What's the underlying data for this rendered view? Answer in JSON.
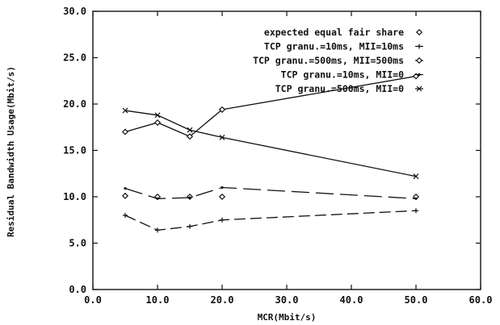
{
  "chart_data": {
    "type": "line",
    "xlabel": "MCR(Mbit/s)",
    "ylabel": "Residual Bandwidth Usage(Mbit/s)",
    "xlim": [
      0,
      60
    ],
    "ylim": [
      0,
      30
    ],
    "x_ticks": [
      "0.0",
      "10.0",
      "20.0",
      "30.0",
      "40.0",
      "50.0",
      "60.0"
    ],
    "y_ticks": [
      "0.0",
      "5.0",
      "10.0",
      "15.0",
      "20.0",
      "25.0",
      "30.0"
    ],
    "x_tick_values": [
      0,
      10,
      20,
      30,
      40,
      50,
      60
    ],
    "y_tick_values": [
      0,
      5,
      10,
      15,
      20,
      25,
      30
    ],
    "legend_position": "top-right",
    "grid": false,
    "series": [
      {
        "name": "expected equal fair share",
        "marker": "diamond",
        "line": "none",
        "x": [
          5,
          10,
          15,
          20,
          50
        ],
        "y": [
          10.1,
          10.0,
          10.0,
          10.0,
          10.0
        ]
      },
      {
        "name": "TCP granu.=10ms, MII=10ms",
        "marker": "plus",
        "line": "dashed",
        "x": [
          5,
          10,
          15,
          20,
          50
        ],
        "y": [
          8.0,
          6.4,
          6.8,
          7.5,
          8.5
        ]
      },
      {
        "name": "TCP granu.=500ms, MII=500ms",
        "marker": "diamond",
        "line": "solid",
        "x": [
          5,
          10,
          15,
          20,
          50
        ],
        "y": [
          17.0,
          18.0,
          16.5,
          19.4,
          23.0
        ]
      },
      {
        "name": "TCP granu.=10ms, MII=0",
        "marker": "dot",
        "line": "long-dashed",
        "x": [
          5,
          10,
          15,
          20,
          50
        ],
        "y": [
          10.9,
          9.8,
          9.9,
          11.0,
          9.8
        ]
      },
      {
        "name": "TCP granu.=500ms, MII=0",
        "marker": "cross",
        "line": "solid",
        "x": [
          5,
          10,
          15,
          20,
          50
        ],
        "y": [
          19.3,
          18.8,
          17.2,
          16.4,
          12.2
        ]
      }
    ]
  }
}
